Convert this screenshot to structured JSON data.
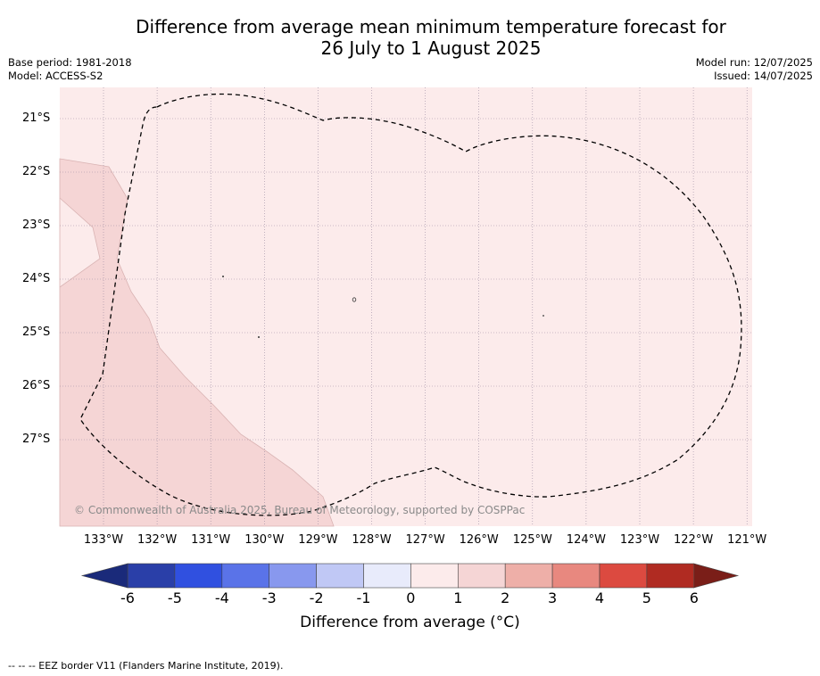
{
  "title_line1": "Difference from average mean minimum temperature forecast for",
  "title_line2": "26 July to 1 August 2025",
  "base_period": "Base period: 1981-2018",
  "model": "Model: ACCESS-S2",
  "model_run": "Model run: 12/07/2025",
  "issued": "Issued: 14/07/2025",
  "lat_labels": [
    "21°S",
    "22°S",
    "23°S",
    "24°S",
    "25°S",
    "26°S",
    "27°S"
  ],
  "lon_labels": [
    "133°W",
    "132°W",
    "131°W",
    "130°W",
    "129°W",
    "128°W",
    "127°W",
    "126°W",
    "125°W",
    "124°W",
    "123°W",
    "122°W",
    "121°W"
  ],
  "copyright": "© Commonwealth of Australia 2025, Bureau of Meteorology, supported by COSPPac",
  "colorbar": {
    "ticks": [
      "-6",
      "-5",
      "-4",
      "-3",
      "-2",
      "-1",
      "0",
      "1",
      "2",
      "3",
      "4",
      "5",
      "6"
    ],
    "colors": [
      "#2a3fa8",
      "#3050e0",
      "#5a73e8",
      "#8898ee",
      "#c0c8f5",
      "#e8ebfb",
      "#fcebeb",
      "#f5d5d5",
      "#eeafa8",
      "#e8887f",
      "#dc4a40",
      "#b02b22"
    ],
    "under_color": "#1a2a7a",
    "over_color": "#7a1e18",
    "label": "Difference from average (°C)"
  },
  "map_colors": {
    "background": "#fcebeb",
    "anomaly_1_2": "#f5d5d5"
  },
  "footer": "-- -- -- EEZ border V11 (Flanders Marine Institute, 2019)."
}
